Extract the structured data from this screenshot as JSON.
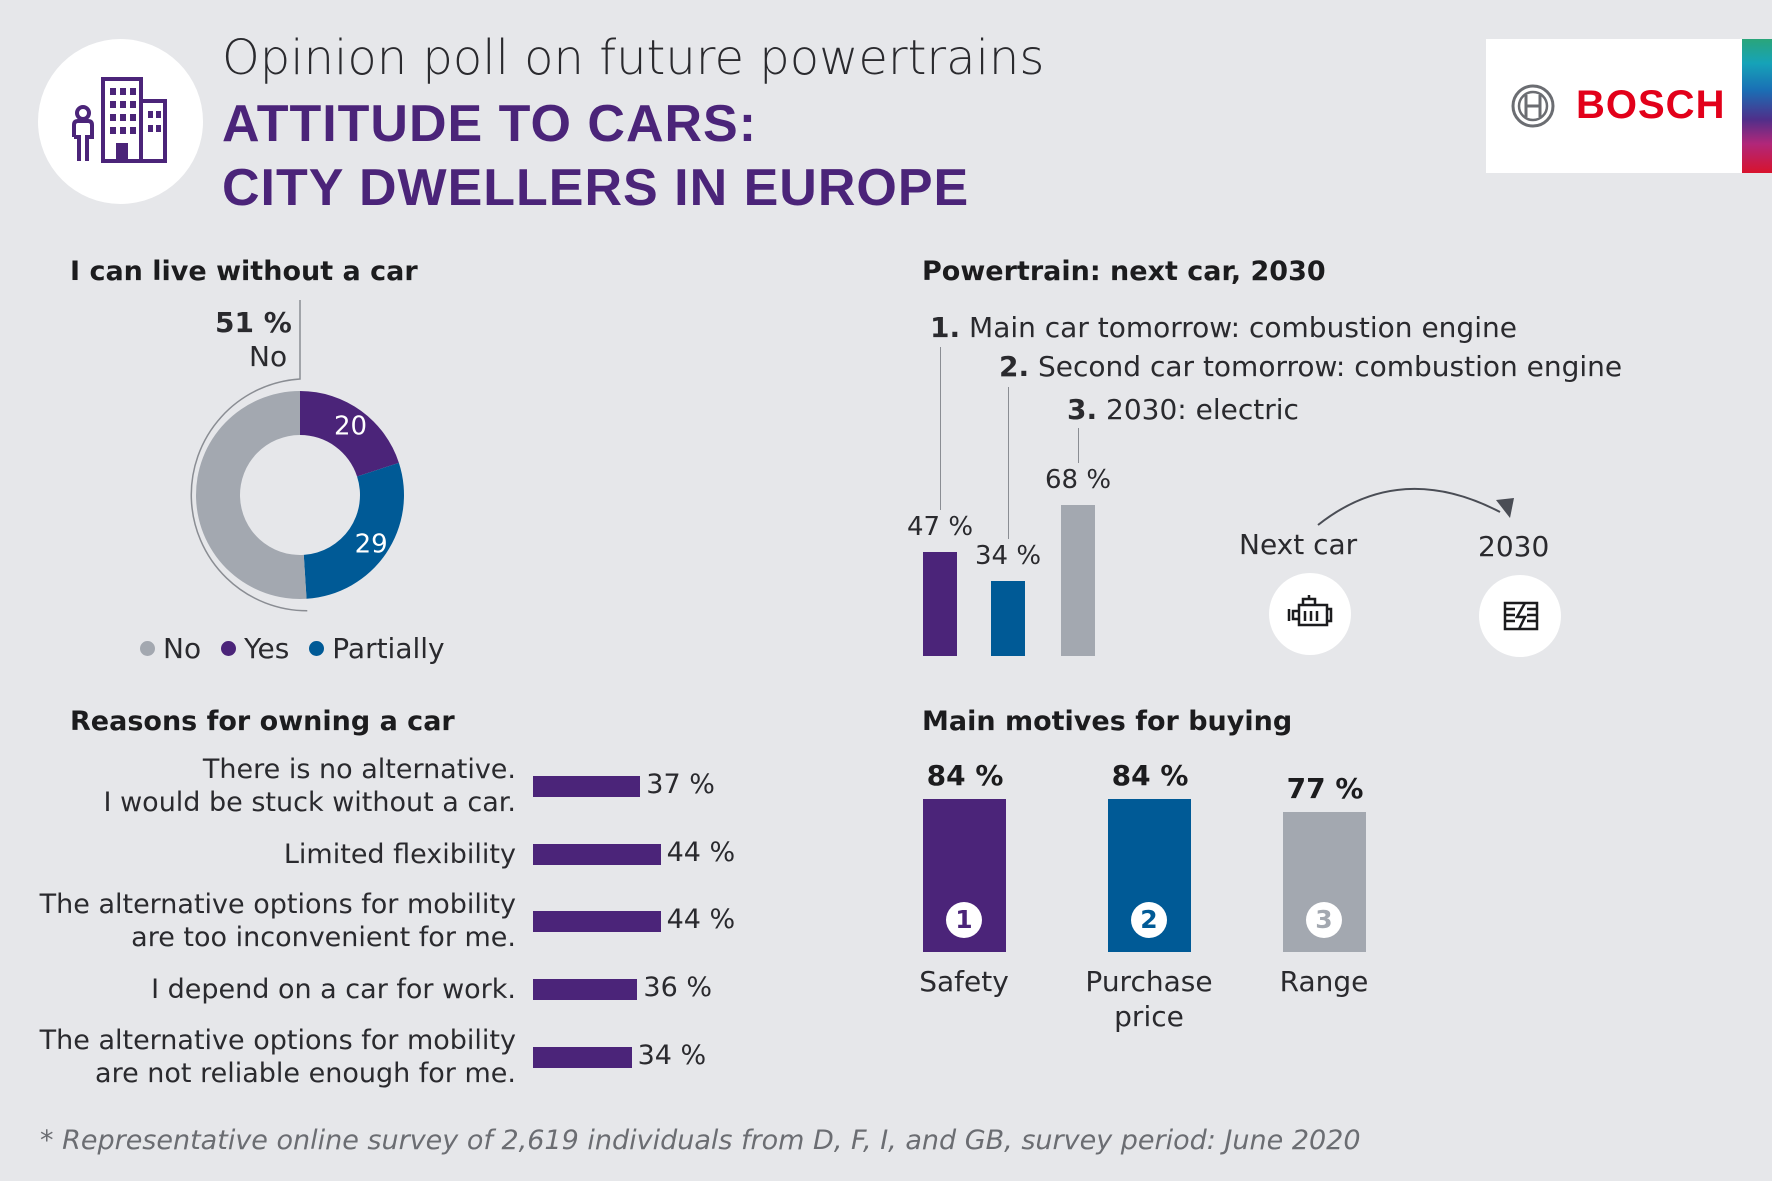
{
  "header": {
    "subtitle": "Opinion poll on future powertrains",
    "title_line1": "ATTITUDE TO CARS:",
    "title_line2": "CITY DWELLERS IN EUROPE",
    "logo": "BOSCH",
    "icon": "city-person-icon",
    "logo_icon": "bosch-armature-icon",
    "brand_color": "#e2001a"
  },
  "colors": {
    "purple": "#4b2479",
    "blue": "#005a96",
    "gray": "#a3a8b0"
  },
  "chart_data": [
    {
      "type": "pie",
      "title": "I can live without a car",
      "callout": {
        "value": "51 %",
        "label": "No"
      },
      "slices": [
        {
          "name": "No",
          "value": 51,
          "label": "",
          "color": "#a3a8b0"
        },
        {
          "name": "Yes",
          "value": 20,
          "label": "20",
          "color": "#4b2479"
        },
        {
          "name": "Partially",
          "value": 29,
          "label": "29",
          "color": "#005a96"
        }
      ],
      "legend": [
        "No",
        "Yes",
        "Partially"
      ]
    },
    {
      "type": "bar",
      "title": "Reasons for owning a car",
      "categories": [
        [
          "There is no alternative.",
          "I would be stuck without a car."
        ],
        [
          "Limited flexibility"
        ],
        [
          "The alternative options for mobility",
          "are too inconvenient for me."
        ],
        [
          "I depend on a car for work."
        ],
        [
          "The alternative options for mobility",
          "are not reliable enough for me."
        ]
      ],
      "values": [
        37,
        44,
        44,
        36,
        34
      ],
      "value_labels": [
        "37 %",
        "44 %",
        "44 %",
        "36 %",
        "34 %"
      ],
      "orientation": "horizontal"
    },
    {
      "type": "bar",
      "title": "Powertrain: next car, 2030",
      "items": [
        {
          "num": "1.",
          "label": "Main car tomorrow: combustion engine",
          "value": 47,
          "value_label": "47 %",
          "color": "#4b2479"
        },
        {
          "num": "2.",
          "label": "Second car tomorrow: combustion engine",
          "value": 34,
          "value_label": "34 %",
          "color": "#005a96"
        },
        {
          "num": "3.",
          "label": "2030: electric",
          "value": 68,
          "value_label": "68 %",
          "color": "#a3a8b0"
        }
      ],
      "transition": {
        "from": "Next car",
        "to": "2030",
        "from_icon": "combustion-engine-icon",
        "to_icon": "electric-battery-icon"
      }
    },
    {
      "type": "bar",
      "title": "Main motives for buying",
      "items": [
        {
          "rank": "1",
          "label": "Safety",
          "value": 84,
          "value_label": "84 %",
          "color": "#4b2479"
        },
        {
          "rank": "2",
          "label": "Purchase price",
          "value": 84,
          "value_label": "84 %",
          "color": "#005a96"
        },
        {
          "rank": "3",
          "label": "Range",
          "value": 77,
          "value_label": "77 %",
          "color": "#a3a8b0"
        }
      ]
    }
  ],
  "footnote": "* Representative online survey of 2,619 individuals from D, F, I, and GB, survey period: June 2020"
}
